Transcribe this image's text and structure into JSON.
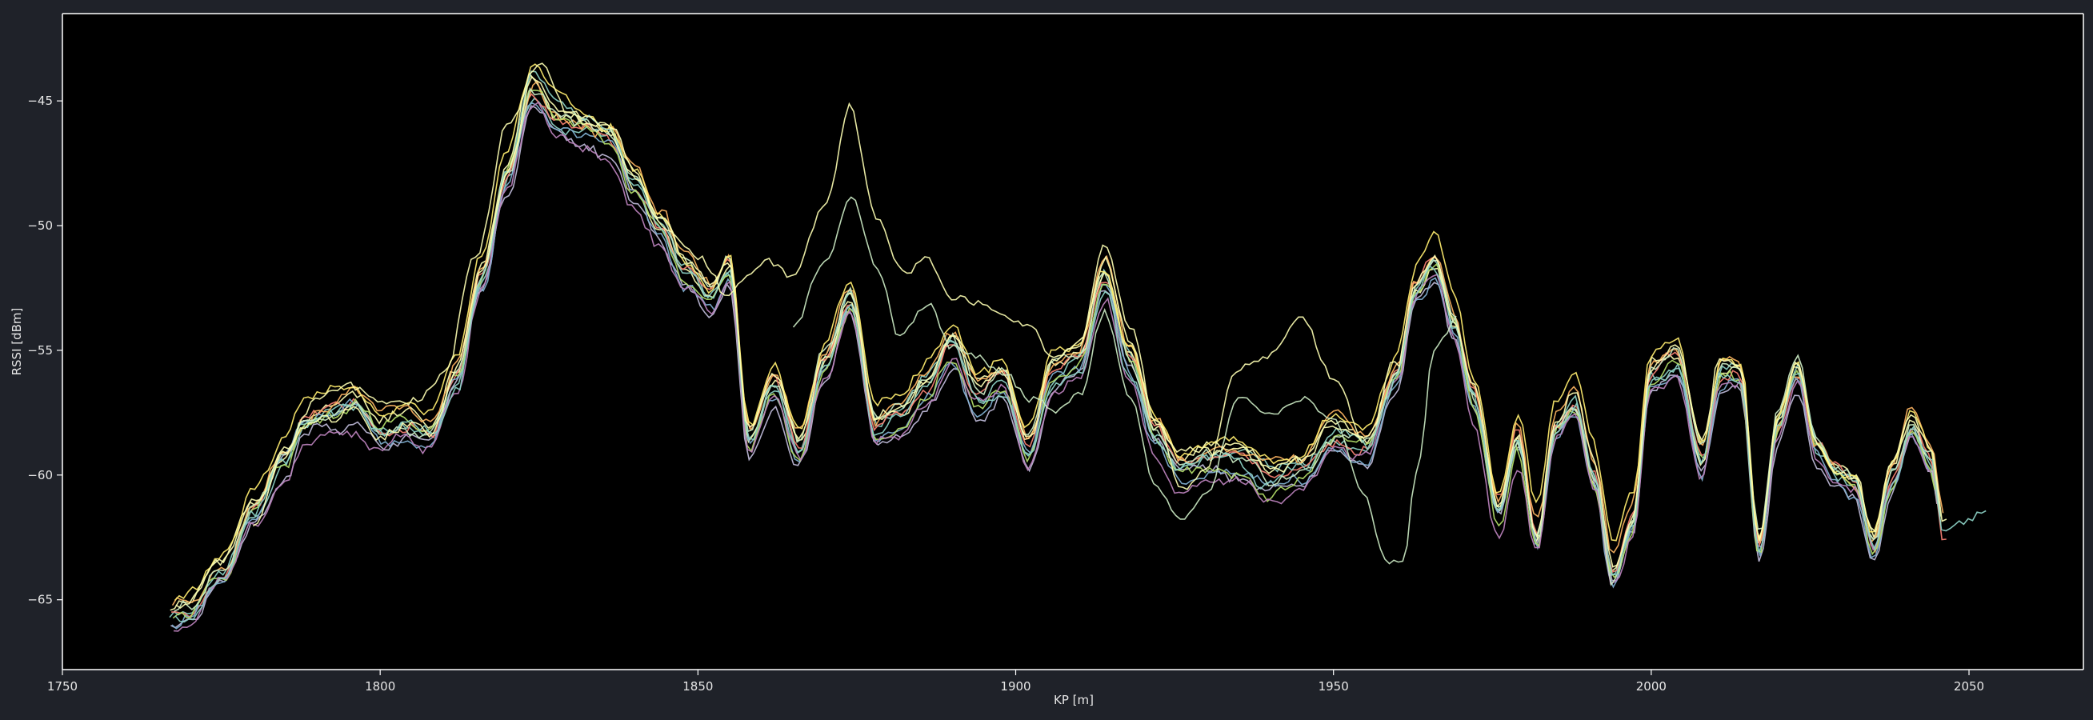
{
  "chart_data": {
    "type": "line",
    "title": "",
    "xlabel": "KP [m]",
    "ylabel": "RSSI [dBm]",
    "xlim": [
      1750,
      2068
    ],
    "ylim": [
      -67.8,
      -41.5
    ],
    "xticks": [
      1750,
      1800,
      1850,
      1900,
      1950,
      2000,
      2050
    ],
    "yticks": [
      -65,
      -60,
      -55,
      -50,
      -45
    ],
    "xtick_labels": [
      "1750",
      "1800",
      "1850",
      "1900",
      "1950",
      "2000",
      "2050"
    ],
    "ytick_labels": [
      "−65",
      "−60",
      "−55",
      "−50",
      "−45"
    ],
    "grid": false,
    "background": "#000000",
    "axis_color": "#ffffff",
    "series_colors": [
      "#8dd3c7",
      "#feffb3",
      "#bfbbd9",
      "#fa8174",
      "#81b1d2",
      "#fdb462",
      "#b3de69",
      "#bc82bd",
      "#ccebc4",
      "#ffed6f"
    ],
    "base_curve": {
      "x": [
        1765,
        1770,
        1775,
        1780,
        1785,
        1788,
        1792,
        1796,
        1800,
        1804,
        1808,
        1812,
        1816,
        1820,
        1824,
        1828,
        1832,
        1836,
        1840,
        1844,
        1848,
        1852,
        1855,
        1858,
        1862,
        1866,
        1870,
        1874,
        1878,
        1882,
        1886,
        1890,
        1894,
        1898,
        1902,
        1906,
        1910,
        1914,
        1918,
        1922,
        1926,
        1930,
        1935,
        1940,
        1945,
        1950,
        1955,
        1960,
        1963,
        1966,
        1969,
        1972,
        1976,
        1979,
        1982,
        1985,
        1988,
        1991,
        1994,
        1997,
        2000,
        2004,
        2008,
        2011,
        2014,
        2017,
        2020,
        2023,
        2026,
        2029,
        2032,
        2035,
        2038,
        2041,
        2044,
        2046
      ],
      "y": [
        -66.0,
        -65.6,
        -64.0,
        -61.5,
        -59.5,
        -58.0,
        -57.6,
        -57.3,
        -58.3,
        -58.0,
        -58.2,
        -56.0,
        -52.0,
        -48.0,
        -44.5,
        -45.8,
        -46.2,
        -46.6,
        -48.6,
        -50.2,
        -52.0,
        -53.0,
        -51.8,
        -58.5,
        -56.5,
        -59.0,
        -55.5,
        -53.0,
        -58.0,
        -57.6,
        -56.5,
        -54.8,
        -56.8,
        -56.2,
        -59.0,
        -56.0,
        -55.5,
        -52.2,
        -55.5,
        -58.5,
        -59.8,
        -59.5,
        -59.5,
        -60.2,
        -60.0,
        -58.5,
        -59.0,
        -56.0,
        -52.5,
        -51.5,
        -54.0,
        -57.0,
        -61.5,
        -58.5,
        -62.5,
        -58.0,
        -57.0,
        -60.0,
        -64.0,
        -62.0,
        -56.0,
        -55.5,
        -59.5,
        -56.0,
        -56.0,
        -63.0,
        -58.0,
        -56.0,
        -59.0,
        -60.0,
        -60.5,
        -63.0,
        -60.0,
        -58.0,
        -59.5,
        -62.5
      ]
    },
    "series": [
      {
        "offset": 0.0,
        "x_end": 2045
      },
      {
        "offset": 0.35,
        "x_end": 2046
      },
      {
        "offset": -0.45,
        "x_end": 2045
      },
      {
        "offset": 0.15,
        "x_end": 2047
      },
      {
        "offset": -0.3,
        "x_end": 2044
      },
      {
        "offset": 0.55,
        "x_end": 2046
      },
      {
        "offset": -0.15,
        "x_end": 2045
      },
      {
        "offset": -0.6,
        "x_end": 2044
      },
      {
        "offset": 0.25,
        "x_end": 2046
      },
      {
        "offset": 0.75,
        "x_end": 2045
      },
      {
        "offset": -0.05,
        "x_end": 2053
      },
      {
        "offset": 0.45,
        "x_end": 2047
      }
    ],
    "outlier_series": [
      {
        "x": [
          1780,
          1785,
          1790,
          1795,
          1800,
          1805,
          1810,
          1815,
          1820,
          1825,
          1830,
          1835,
          1840,
          1845,
          1850,
          1855,
          1860,
          1865,
          1870,
          1874,
          1878,
          1882,
          1886,
          1890,
          1894,
          1898,
          1902,
          1906,
          1910,
          1914,
          1918,
          1922,
          1926,
          1930,
          1935,
          1940,
          1945,
          1950,
          1955
        ],
        "y": [
          -62.0,
          -59.0,
          -57.0,
          -56.5,
          -57.0,
          -57.2,
          -56.0,
          -51.5,
          -46.0,
          -43.5,
          -45.5,
          -46.0,
          -48.0,
          -50.0,
          -51.0,
          -52.8,
          -51.5,
          -52.0,
          -49.5,
          -45.7,
          -50.0,
          -52.0,
          -51.2,
          -53.0,
          -52.8,
          -53.5,
          -54.0,
          -55.2,
          -54.8,
          -50.5,
          -53.8,
          -57.5,
          -60.2,
          -59.5,
          -55.5,
          -55.0,
          -53.8,
          -56.0,
          -58.5
        ]
      },
      {
        "x": [
          1865,
          1870,
          1874,
          1878,
          1882,
          1886,
          1890,
          1894,
          1898,
          1902,
          1906,
          1910,
          1914,
          1918,
          1922,
          1926,
          1930,
          1935,
          1940,
          1945,
          1950,
          1955,
          1958,
          1961,
          1963,
          1966,
          1970
        ],
        "y": [
          -54.0,
          -51.5,
          -48.8,
          -51.5,
          -54.5,
          -53.0,
          -54.8,
          -55.5,
          -56.0,
          -57.0,
          -57.5,
          -56.8,
          -53.5,
          -57.0,
          -60.5,
          -62.0,
          -61.0,
          -57.0,
          -57.2,
          -56.8,
          -58.0,
          -61.0,
          -63.5,
          -63.5,
          -60.0,
          -55.0,
          -53.5
        ]
      }
    ]
  }
}
